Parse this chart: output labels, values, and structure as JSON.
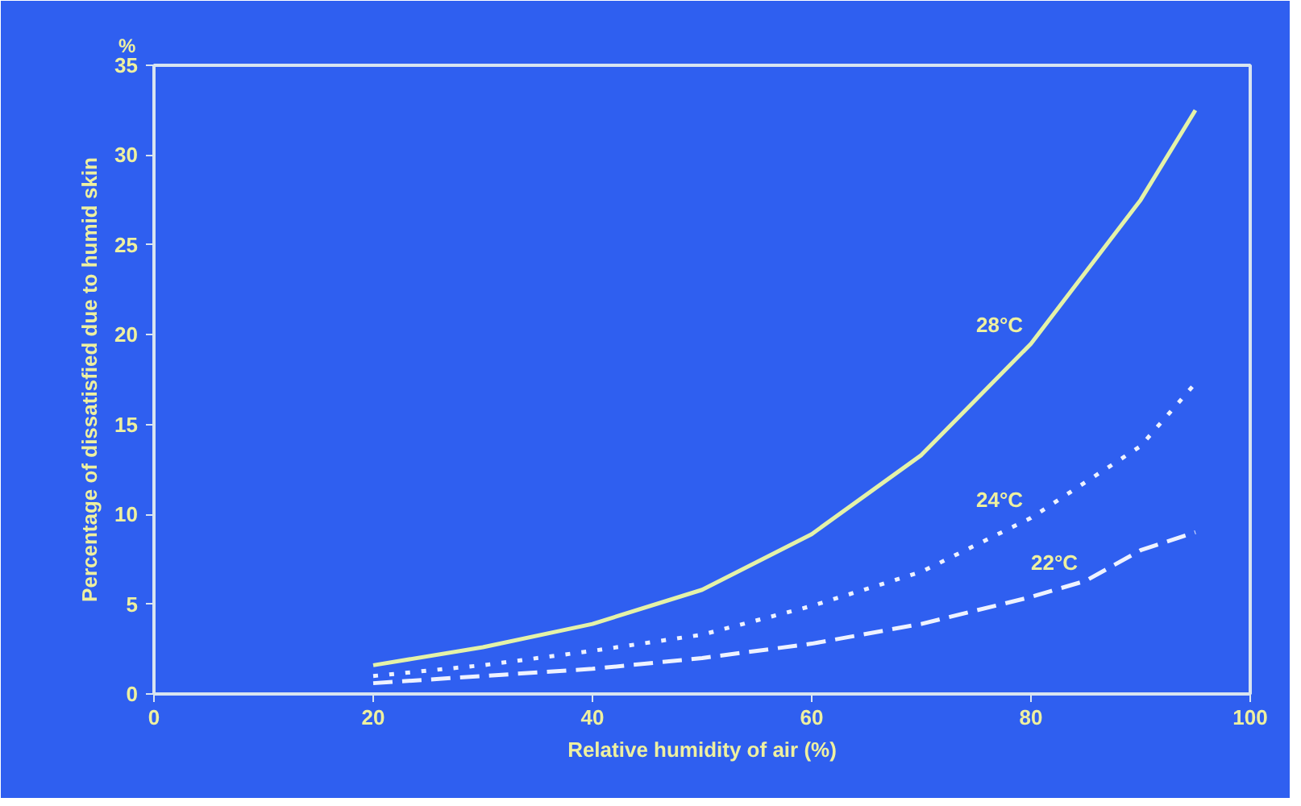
{
  "chart_data": {
    "type": "line",
    "xlabel": "Relative humidity of air (%)",
    "ylabel": "Percentage of dissatisfied due to humid skin",
    "annotations": [
      "%"
    ],
    "xlim": [
      0,
      100
    ],
    "xticks": [
      0,
      20,
      40,
      60,
      80,
      100
    ],
    "ylim": [
      0,
      35
    ],
    "yticks": [
      0,
      5,
      10,
      15,
      20,
      25,
      30,
      35
    ],
    "grid": false,
    "series": [
      {
        "name": "28°C",
        "color": "#e4f2a8",
        "line_style": "solid",
        "x": [
          20,
          30,
          40,
          50,
          60,
          70,
          80,
          90,
          95
        ],
        "values": [
          1.6,
          2.6,
          3.9,
          5.8,
          8.9,
          13.3,
          19.5,
          27.5,
          32.5
        ]
      },
      {
        "name": "24°C",
        "color": "#eef2ff",
        "line_style": "dotted",
        "x": [
          20,
          30,
          40,
          50,
          60,
          70,
          80,
          90,
          95
        ],
        "values": [
          1.0,
          1.6,
          2.4,
          3.3,
          4.9,
          6.8,
          9.8,
          13.8,
          17.3
        ]
      },
      {
        "name": "22°C",
        "color": "#eef2ff",
        "line_style": "dashed",
        "x": [
          20,
          30,
          40,
          50,
          60,
          70,
          80,
          85,
          90,
          95
        ],
        "values": [
          0.6,
          1.0,
          1.4,
          2.0,
          2.8,
          3.9,
          5.4,
          6.3,
          8.0,
          9.0
        ]
      }
    ]
  }
}
